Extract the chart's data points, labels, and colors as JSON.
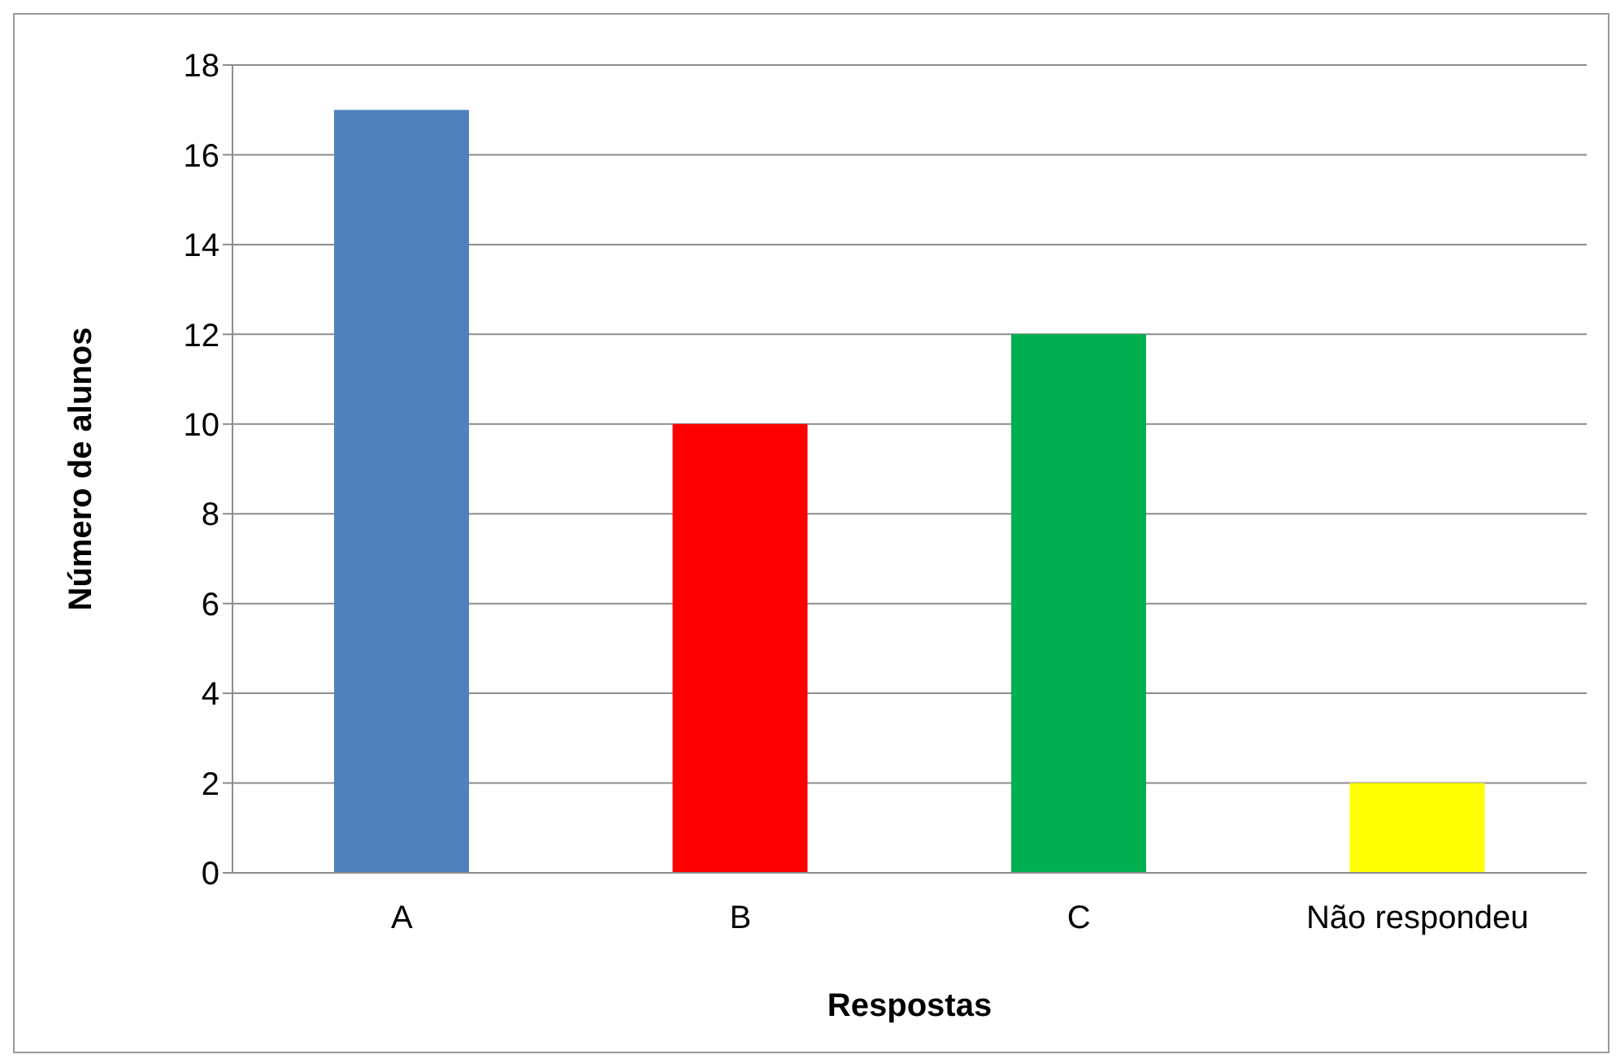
{
  "chart_data": {
    "type": "bar",
    "xlabel": "Respostas",
    "ylabel": "Número de alunos",
    "categories": [
      "A",
      "B",
      "C",
      "Não respondeu"
    ],
    "values": [
      17,
      10,
      12,
      2
    ],
    "colors": [
      "#4f81bd",
      "#ff0000",
      "#00b050",
      "#ffff00"
    ],
    "ylim": [
      0,
      18
    ],
    "yticks": [
      0,
      2,
      4,
      6,
      8,
      10,
      12,
      14,
      16,
      18
    ],
    "grid": "y"
  }
}
